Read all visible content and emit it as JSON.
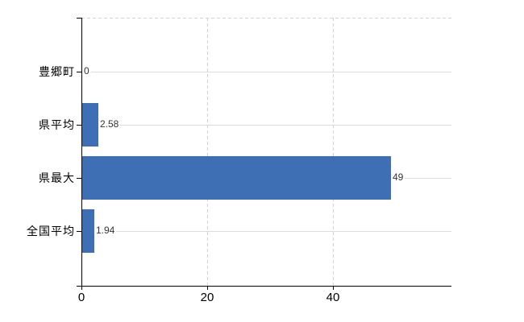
{
  "chart": {
    "background": "#ffffff",
    "bar_color": "#3e6fb4",
    "axis_color": "#000000",
    "h_gridline_color": "#d9ded9",
    "v_gridline_color": "#d2d2d2",
    "value_label_color": "#333333",
    "category_label_color": "#000000",
    "tick_label_color": "#000000"
  },
  "chart_data": {
    "type": "bar",
    "orientation": "horizontal",
    "title": "",
    "xlabel": "",
    "ylabel": "",
    "categories": [
      "豊郷町",
      "県平均",
      "県最大",
      "全国平均"
    ],
    "values": [
      0,
      2.58,
      49,
      1.94
    ],
    "value_labels": [
      "0",
      "2.58",
      "49",
      "1.94"
    ],
    "x_ticks": [
      0,
      20,
      40
    ],
    "x_tick_labels": [
      "0",
      "20",
      "40"
    ],
    "xlim": [
      0,
      58.8
    ],
    "grid": true,
    "legend": false
  }
}
